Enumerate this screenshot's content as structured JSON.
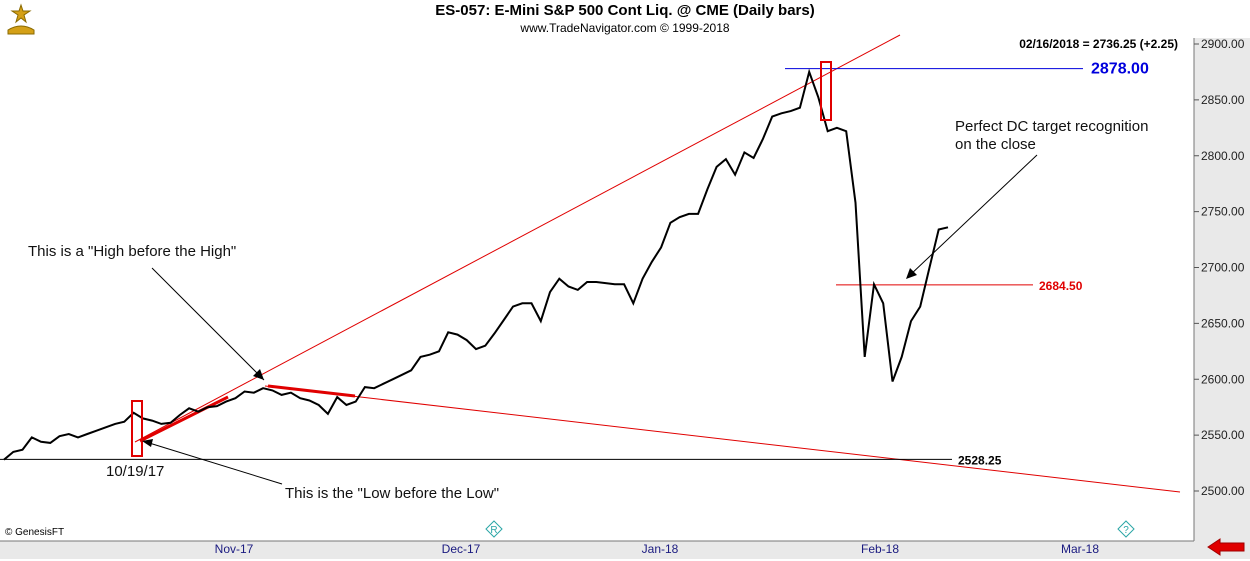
{
  "header": {
    "title": "ES-057:  E-Mini S&P 500 Cont Liq. @ CME  (Daily bars)",
    "subtitle": "www.TradeNavigator.com © 1999-2018"
  },
  "quote": "02/16/2018 = 2736.25 (+2.25)",
  "copyright": "© GenesisFT",
  "colors": {
    "price_line": "#000000",
    "trend_line": "#e00000",
    "level_high": "#0000dd",
    "level_mid": "#e00000",
    "level_low": "#000000",
    "axis_bg": "#e9e9e9",
    "back_arrow": "#e00000"
  },
  "icons": {
    "logo": "bull-bear-logo-icon",
    "marker_r": "r-diamond-icon",
    "marker_q": "question-diamond-icon",
    "back": "left-arrow-icon"
  },
  "chart_data": {
    "type": "line",
    "series": [
      {
        "values": [
          2528,
          2535,
          2537,
          2548,
          2544,
          2543,
          2549,
          2551,
          2548,
          2551,
          2554,
          2557,
          2560,
          2562,
          2570,
          2565,
          2563,
          2560,
          2561,
          2568,
          2574,
          2571,
          2575,
          2576,
          2580,
          2583,
          2589,
          2588,
          2592,
          2590,
          2586,
          2588,
          2583,
          2581,
          2577,
          2569,
          2584,
          2577,
          2580,
          2593,
          2592,
          2596,
          2600,
          2604,
          2608,
          2620,
          2622,
          2625,
          2642,
          2640,
          2635,
          2627,
          2630,
          2641,
          2653,
          2665,
          2668,
          2668,
          2652,
          2678,
          2690,
          2683,
          2680,
          2687,
          2687,
          2686,
          2685,
          2685,
          2668,
          2690,
          2705,
          2718,
          2740,
          2745,
          2748,
          2748,
          2770,
          2790,
          2797,
          2783,
          2803,
          2798,
          2815,
          2835,
          2838,
          2840,
          2843,
          2875,
          2852,
          2822,
          2825,
          2822,
          2758,
          2620,
          2685,
          2668,
          2598,
          2620,
          2652,
          2665,
          2700,
          2734,
          2736
        ]
      }
    ],
    "x_start_date": "2017-10-02",
    "x_ticks": [
      "Nov-17",
      "Dec-17",
      "Jan-18",
      "Feb-18",
      "Mar-18"
    ],
    "y_ticks": [
      2500,
      2550,
      2600,
      2650,
      2700,
      2750,
      2800,
      2850,
      2900
    ],
    "y_tick_labels": [
      "2500.00",
      "2550.00",
      "2600.00",
      "2650.00",
      "2700.00",
      "2750.00",
      "2800.00",
      "2850.00",
      "2900.00"
    ],
    "ylim": [
      2470,
      2920
    ],
    "levels": [
      {
        "value": 2878.0,
        "label": "2878.00",
        "color": "#0000dd"
      },
      {
        "value": 2684.5,
        "label": "2684.50",
        "color": "#e00000"
      },
      {
        "value": 2528.25,
        "label": "2528.25",
        "color": "#000000"
      }
    ],
    "annotations": {
      "high_before_high": "This is a \"High before the High\"",
      "low_before_low": "This is the \"Low before the Low\"",
      "dc_target_line1": "Perfect DC target recognition",
      "dc_target_line2": "on the close",
      "date_marker": "10/19/17"
    },
    "grid": false
  }
}
